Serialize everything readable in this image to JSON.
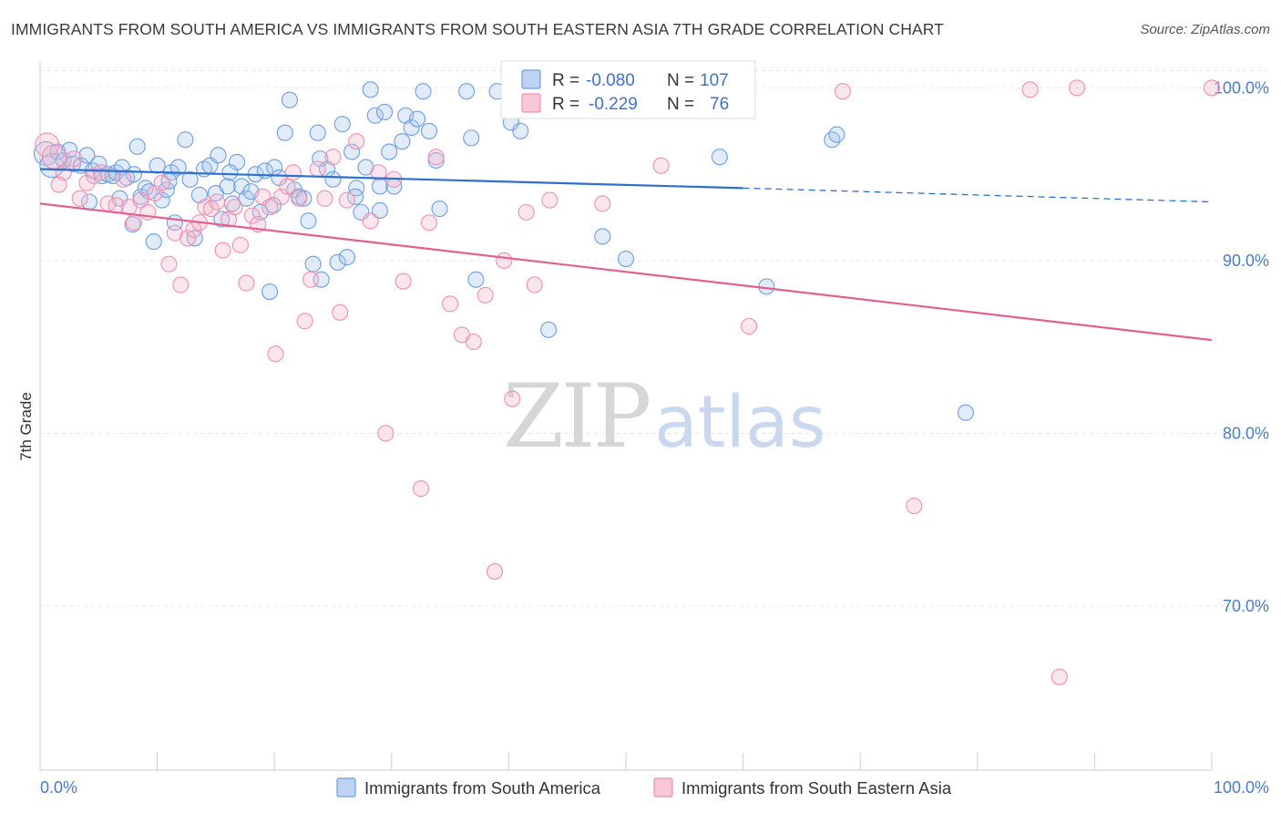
{
  "title": "IMMIGRANTS FROM SOUTH AMERICA VS IMMIGRANTS FROM SOUTH EASTERN ASIA 7TH GRADE CORRELATION CHART",
  "source": "Source: ZipAtlas.com",
  "watermark": {
    "zip": "ZIP",
    "atlas": "atlas"
  },
  "legend": {
    "rows": [
      {
        "r_label": "R =",
        "r_value": "-0.080",
        "n_label": "N =",
        "n_value": "107"
      },
      {
        "r_label": "R =",
        "r_value": "-0.229",
        "n_label": "N =",
        "n_value": "76"
      }
    ]
  },
  "chart_data": {
    "type": "scatter",
    "title": "IMMIGRANTS FROM SOUTH AMERICA VS IMMIGRANTS FROM SOUTH EASTERN ASIA 7TH GRADE CORRELATION CHART",
    "xlabel": "",
    "ylabel": "7th Grade",
    "xlim": [
      0,
      100
    ],
    "ylim": [
      60.5,
      101.5
    ],
    "x_tick_labels": [
      "0.0%",
      "100.0%"
    ],
    "y_ticks": [
      70,
      80,
      90,
      100
    ],
    "y_tick_labels": [
      "70.0%",
      "80.0%",
      "90.0%",
      "100.0%"
    ],
    "grid": true,
    "legend_position": "top-center",
    "colors": {
      "south_america": "#6c9ee0",
      "south_america_line": "#2f6fcd",
      "se_asia": "#ee8fae",
      "se_asia_line": "#e2608f"
    },
    "series": [
      {
        "name": "Immigrants from South America",
        "color": "#6c9ee0",
        "r": -0.08,
        "n": 107,
        "trend": {
          "x": [
            0,
            60
          ],
          "y": [
            95.3,
            94.2
          ],
          "dashed_to": [
            100,
            93.4
          ]
        },
        "points": [
          [
            0.5,
            96.2
          ],
          [
            1.0,
            95.5
          ],
          [
            1.5,
            96.3
          ],
          [
            2.0,
            95.8
          ],
          [
            2.5,
            96.4
          ],
          [
            2.8,
            95.6
          ],
          [
            3.5,
            95.5
          ],
          [
            4.0,
            96.1
          ],
          [
            4.5,
            95.2
          ],
          [
            5.0,
            95.6
          ],
          [
            5.3,
            94.9
          ],
          [
            5.8,
            95.0
          ],
          [
            6.2,
            94.9
          ],
          [
            6.5,
            95.1
          ],
          [
            6.8,
            93.6
          ],
          [
            7.0,
            95.4
          ],
          [
            7.4,
            94.8
          ],
          [
            8.0,
            95.0
          ],
          [
            8.3,
            96.6
          ],
          [
            8.6,
            93.7
          ],
          [
            9.0,
            94.2
          ],
          [
            9.3,
            94.0
          ],
          [
            9.7,
            91.1
          ],
          [
            10.0,
            95.5
          ],
          [
            10.4,
            93.5
          ],
          [
            10.8,
            94.1
          ],
          [
            11.2,
            95.1
          ],
          [
            11.5,
            92.2
          ],
          [
            11.8,
            95.4
          ],
          [
            12.4,
            97.0
          ],
          [
            12.8,
            94.7
          ],
          [
            13.2,
            91.3
          ],
          [
            13.6,
            93.8
          ],
          [
            14.0,
            95.3
          ],
          [
            14.5,
            95.5
          ],
          [
            15.0,
            93.9
          ],
          [
            15.5,
            92.4
          ],
          [
            16.0,
            94.3
          ],
          [
            16.4,
            93.3
          ],
          [
            16.8,
            95.7
          ],
          [
            17.2,
            94.3
          ],
          [
            17.6,
            93.6
          ],
          [
            18.0,
            94.0
          ],
          [
            18.4,
            95.0
          ],
          [
            18.8,
            92.8
          ],
          [
            19.2,
            95.2
          ],
          [
            19.6,
            88.2
          ],
          [
            20.0,
            95.4
          ],
          [
            20.4,
            94.8
          ],
          [
            20.9,
            97.4
          ],
          [
            21.3,
            99.3
          ],
          [
            21.7,
            94.1
          ],
          [
            22.1,
            93.7
          ],
          [
            22.5,
            93.6
          ],
          [
            22.9,
            92.3
          ],
          [
            23.3,
            89.8
          ],
          [
            23.7,
            97.4
          ],
          [
            24.0,
            88.9
          ],
          [
            24.5,
            95.3
          ],
          [
            25.0,
            94.7
          ],
          [
            25.4,
            89.9
          ],
          [
            25.8,
            97.9
          ],
          [
            26.2,
            90.2
          ],
          [
            26.6,
            96.3
          ],
          [
            27.0,
            94.2
          ],
          [
            27.4,
            92.8
          ],
          [
            27.8,
            95.4
          ],
          [
            28.2,
            99.9
          ],
          [
            28.6,
            98.4
          ],
          [
            29.0,
            94.3
          ],
          [
            29.4,
            98.6
          ],
          [
            29.8,
            96.3
          ],
          [
            30.2,
            94.3
          ],
          [
            31.2,
            98.4
          ],
          [
            31.7,
            97.7
          ],
          [
            32.2,
            98.2
          ],
          [
            32.7,
            99.8
          ],
          [
            33.2,
            97.5
          ],
          [
            34.1,
            93.0
          ],
          [
            36.4,
            99.8
          ],
          [
            37.2,
            88.9
          ],
          [
            39.0,
            99.8
          ],
          [
            40.2,
            98.0
          ],
          [
            41.0,
            97.5
          ],
          [
            42.3,
            98.8
          ],
          [
            43.4,
            86.0
          ],
          [
            44.0,
            99.9
          ],
          [
            46.5,
            99.6
          ],
          [
            48.0,
            91.4
          ],
          [
            50.0,
            90.1
          ],
          [
            58.0,
            96.0
          ],
          [
            62.0,
            88.5
          ],
          [
            67.6,
            97.0
          ],
          [
            68.0,
            97.3
          ],
          [
            79.0,
            81.2
          ],
          [
            4.2,
            93.4
          ],
          [
            7.9,
            92.1
          ],
          [
            11.0,
            94.6
          ],
          [
            15.2,
            96.1
          ],
          [
            16.2,
            95.1
          ],
          [
            19.9,
            93.2
          ],
          [
            23.9,
            95.9
          ],
          [
            26.9,
            93.7
          ],
          [
            29.0,
            92.9
          ],
          [
            30.9,
            96.9
          ],
          [
            33.8,
            95.8
          ],
          [
            36.8,
            97.1
          ]
        ]
      },
      {
        "name": "Immigrants from South Eastern Asia",
        "color": "#ee8fae",
        "r": -0.229,
        "n": 76,
        "trend": {
          "x": [
            0,
            100
          ],
          "y": [
            93.3,
            85.4
          ]
        },
        "points": [
          [
            0.6,
            96.7
          ],
          [
            1.2,
            96.0
          ],
          [
            2.0,
            95.1
          ],
          [
            2.9,
            95.9
          ],
          [
            3.4,
            93.6
          ],
          [
            4.0,
            94.5
          ],
          [
            4.6,
            94.9
          ],
          [
            5.2,
            95.1
          ],
          [
            5.8,
            93.3
          ],
          [
            6.5,
            93.2
          ],
          [
            7.1,
            94.7
          ],
          [
            7.6,
            93.1
          ],
          [
            8.0,
            92.2
          ],
          [
            8.6,
            93.5
          ],
          [
            9.2,
            92.8
          ],
          [
            9.8,
            93.9
          ],
          [
            10.4,
            94.5
          ],
          [
            11.0,
            89.8
          ],
          [
            11.5,
            91.6
          ],
          [
            12.0,
            88.6
          ],
          [
            12.6,
            91.3
          ],
          [
            13.1,
            91.8
          ],
          [
            13.6,
            92.2
          ],
          [
            14.1,
            93.1
          ],
          [
            14.6,
            93.0
          ],
          [
            15.1,
            93.4
          ],
          [
            15.6,
            90.6
          ],
          [
            16.1,
            92.4
          ],
          [
            16.6,
            93.1
          ],
          [
            17.1,
            90.9
          ],
          [
            17.6,
            88.7
          ],
          [
            18.1,
            92.6
          ],
          [
            18.6,
            92.1
          ],
          [
            19.0,
            93.7
          ],
          [
            19.6,
            93.1
          ],
          [
            20.1,
            84.6
          ],
          [
            20.6,
            93.7
          ],
          [
            21.1,
            94.3
          ],
          [
            21.6,
            95.1
          ],
          [
            22.1,
            93.6
          ],
          [
            22.6,
            86.5
          ],
          [
            23.1,
            88.9
          ],
          [
            23.7,
            95.3
          ],
          [
            24.3,
            93.6
          ],
          [
            25.0,
            96.0
          ],
          [
            25.6,
            87.0
          ],
          [
            26.2,
            93.5
          ],
          [
            27.0,
            96.9
          ],
          [
            28.2,
            92.3
          ],
          [
            28.9,
            95.1
          ],
          [
            29.5,
            80.0
          ],
          [
            30.2,
            94.7
          ],
          [
            31.0,
            88.8
          ],
          [
            32.5,
            76.8
          ],
          [
            33.2,
            92.2
          ],
          [
            33.8,
            96.0
          ],
          [
            35.0,
            87.5
          ],
          [
            36.0,
            85.7
          ],
          [
            37.0,
            85.3
          ],
          [
            38.0,
            88.0
          ],
          [
            38.8,
            72.0
          ],
          [
            39.6,
            90.0
          ],
          [
            40.3,
            82.0
          ],
          [
            41.5,
            92.8
          ],
          [
            42.2,
            88.6
          ],
          [
            43.5,
            93.5
          ],
          [
            48.0,
            93.3
          ],
          [
            53.0,
            95.5
          ],
          [
            60.5,
            86.2
          ],
          [
            68.5,
            99.8
          ],
          [
            74.6,
            75.8
          ],
          [
            84.5,
            99.9
          ],
          [
            87.0,
            65.9
          ],
          [
            88.5,
            100.0
          ],
          [
            100.0,
            100.0
          ],
          [
            1.6,
            94.4
          ]
        ]
      }
    ]
  },
  "bottom_legend": [
    {
      "label": "Immigrants from South America"
    },
    {
      "label": "Immigrants from South Eastern Asia"
    }
  ]
}
